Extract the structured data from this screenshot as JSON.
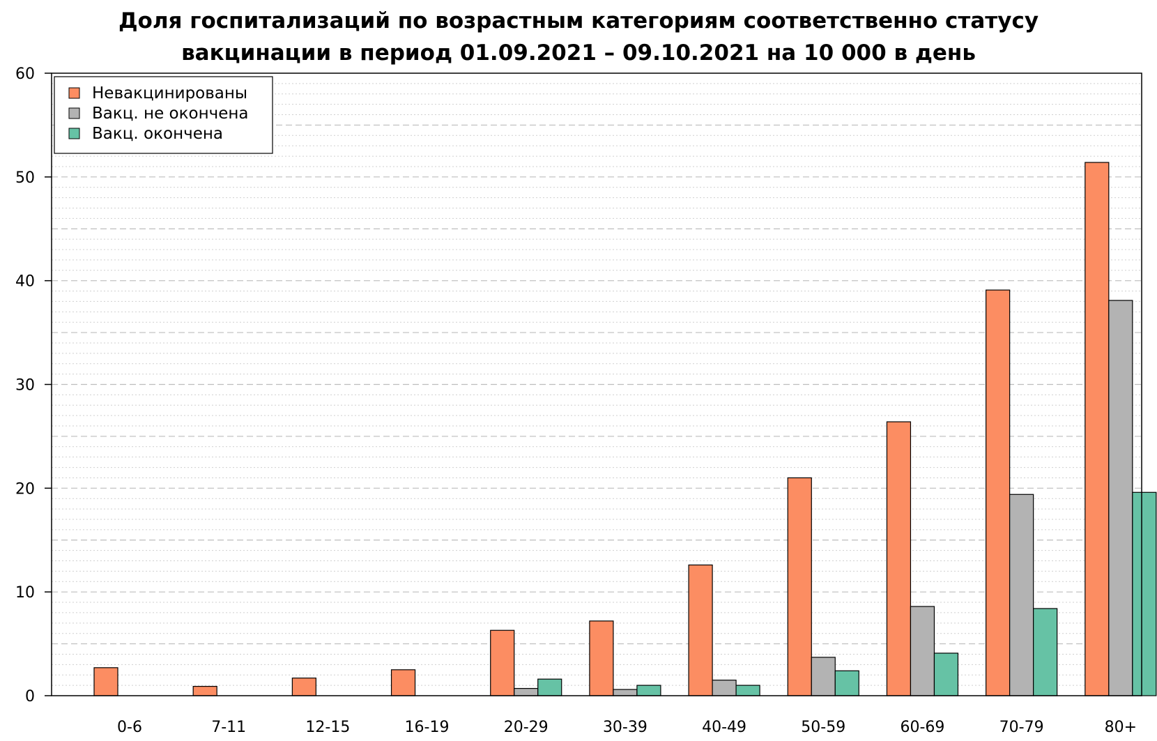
{
  "chart_data": {
    "type": "bar",
    "title_lines": [
      "Доля госпитализаций по возрастным категориям соответственно статусу",
      "вакцинации в период 01.09.2021 – 09.10.2021 на 10 000 в день"
    ],
    "xlabel": "",
    "ylabel": "",
    "ylim": [
      0,
      60
    ],
    "yticks": [
      0,
      10,
      20,
      30,
      40,
      50,
      60
    ],
    "grid": true,
    "legend_position": "top-left",
    "categories": [
      "0-6",
      "7-11",
      "12-15",
      "16-19",
      "20-29",
      "30-39",
      "40-49",
      "50-59",
      "60-69",
      "70-79",
      "80+"
    ],
    "series": [
      {
        "name": "Невакцинированы",
        "color": "#fc8d62",
        "values": [
          2.7,
          0.9,
          1.7,
          2.5,
          6.3,
          7.2,
          12.6,
          21.0,
          26.4,
          39.1,
          51.4
        ]
      },
      {
        "name": "Вакц. не окончена",
        "color": "#b3b3b3",
        "values": [
          0,
          0,
          0,
          0,
          0.7,
          0.6,
          1.5,
          3.7,
          8.6,
          19.4,
          38.1
        ]
      },
      {
        "name": "Вакц. окончена",
        "color": "#66c2a5",
        "values": [
          0,
          0,
          0,
          0,
          1.6,
          1.0,
          1.0,
          2.4,
          4.1,
          8.4,
          19.6
        ]
      }
    ]
  }
}
